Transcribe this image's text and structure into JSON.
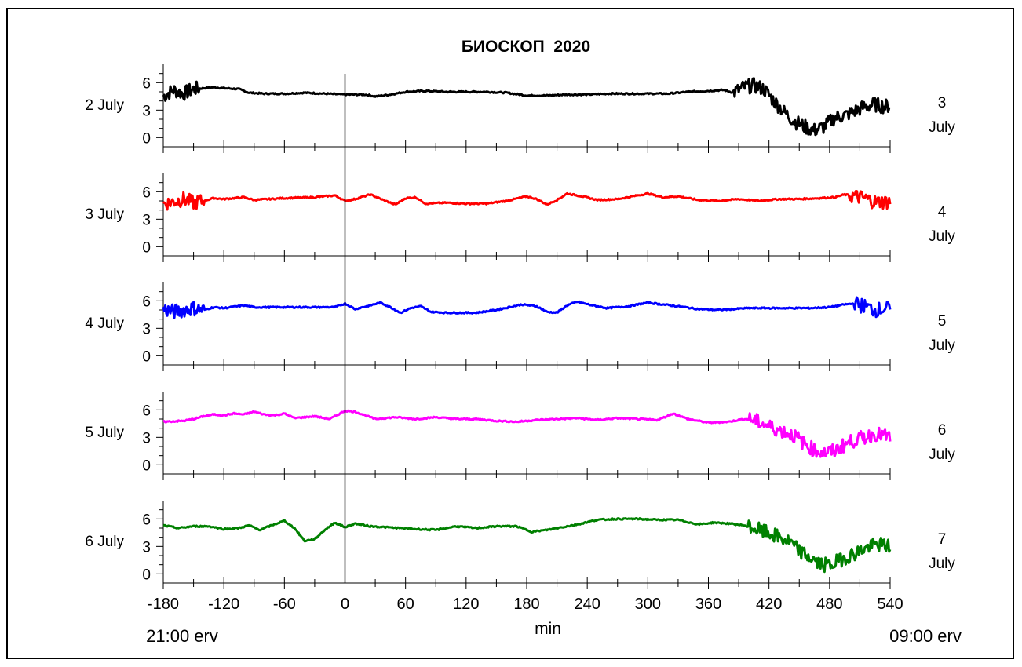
{
  "chart_data": {
    "type": "line",
    "title": "БИОСКОП  2020",
    "xlabel": "min",
    "x_left_note": "21:00 erv",
    "x_right_note": "09:00 erv",
    "xlim": [
      -180,
      540
    ],
    "x_ticks": [
      -180,
      -120,
      -60,
      0,
      60,
      120,
      180,
      240,
      300,
      360,
      420,
      480,
      540
    ],
    "x_tick_labels": [
      "-180",
      "-120",
      "-60",
      "0",
      "60",
      "120",
      "180",
      "240",
      "300",
      "360",
      "420",
      "480",
      "540"
    ],
    "ylim": [
      -1,
      8
    ],
    "y_ticks": [
      0,
      3,
      6
    ],
    "y_tick_labels": [
      "0",
      "3",
      "6"
    ],
    "vline_x": 0,
    "grid": false,
    "legend": "none",
    "panels": [
      {
        "left_label": "2 July",
        "right_num": "3",
        "right_word": "July",
        "color": "#000000",
        "points": [
          [
            -180,
            4.5
          ],
          [
            -170,
            5.2
          ],
          [
            -160,
            4.8
          ],
          [
            -150,
            5.3
          ],
          [
            -140,
            5.4
          ],
          [
            -130,
            5.5
          ],
          [
            -120,
            5.4
          ],
          [
            -105,
            5.3
          ],
          [
            -95,
            4.9
          ],
          [
            -80,
            4.8
          ],
          [
            -60,
            4.8
          ],
          [
            -40,
            4.9
          ],
          [
            -20,
            4.8
          ],
          [
            0,
            4.7
          ],
          [
            20,
            4.7
          ],
          [
            30,
            4.5
          ],
          [
            45,
            4.7
          ],
          [
            60,
            5.0
          ],
          [
            80,
            5.1
          ],
          [
            100,
            5.0
          ],
          [
            120,
            5.0
          ],
          [
            140,
            5.0
          ],
          [
            160,
            4.9
          ],
          [
            180,
            4.6
          ],
          [
            200,
            4.6
          ],
          [
            220,
            4.7
          ],
          [
            240,
            4.7
          ],
          [
            260,
            4.8
          ],
          [
            280,
            4.8
          ],
          [
            300,
            4.8
          ],
          [
            320,
            4.8
          ],
          [
            340,
            5.0
          ],
          [
            360,
            5.1
          ],
          [
            375,
            5.2
          ],
          [
            385,
            4.9
          ],
          [
            395,
            5.5
          ],
          [
            405,
            5.7
          ],
          [
            415,
            5.3
          ],
          [
            425,
            4.0
          ],
          [
            435,
            2.8
          ],
          [
            445,
            1.8
          ],
          [
            455,
            1.2
          ],
          [
            465,
            0.8
          ],
          [
            475,
            1.2
          ],
          [
            485,
            2.2
          ],
          [
            495,
            2.4
          ],
          [
            505,
            2.9
          ],
          [
            515,
            3.4
          ],
          [
            525,
            3.6
          ],
          [
            535,
            3.4
          ],
          [
            540,
            3.5
          ]
        ],
        "noisy_ranges": [
          [
            -180,
            -145
          ],
          [
            385,
            540
          ]
        ]
      },
      {
        "left_label": "3 July",
        "right_num": "4",
        "right_word": "July",
        "color": "#ff0000",
        "points": [
          [
            -180,
            4.7
          ],
          [
            -170,
            4.9
          ],
          [
            -160,
            5.2
          ],
          [
            -150,
            4.8
          ],
          [
            -140,
            5.0
          ],
          [
            -130,
            5.3
          ],
          [
            -120,
            5.2
          ],
          [
            -100,
            5.4
          ],
          [
            -90,
            5.1
          ],
          [
            -60,
            5.3
          ],
          [
            -30,
            5.4
          ],
          [
            -10,
            5.6
          ],
          [
            0,
            5.0
          ],
          [
            10,
            5.2
          ],
          [
            25,
            5.7
          ],
          [
            40,
            5.0
          ],
          [
            50,
            4.6
          ],
          [
            60,
            5.3
          ],
          [
            70,
            5.4
          ],
          [
            80,
            4.7
          ],
          [
            100,
            4.8
          ],
          [
            120,
            4.7
          ],
          [
            140,
            4.7
          ],
          [
            160,
            5.0
          ],
          [
            180,
            5.5
          ],
          [
            190,
            5.2
          ],
          [
            200,
            4.6
          ],
          [
            210,
            5.1
          ],
          [
            220,
            5.8
          ],
          [
            235,
            5.5
          ],
          [
            250,
            5.1
          ],
          [
            270,
            5.2
          ],
          [
            290,
            5.6
          ],
          [
            300,
            5.8
          ],
          [
            315,
            5.4
          ],
          [
            330,
            5.5
          ],
          [
            350,
            5.1
          ],
          [
            370,
            5.0
          ],
          [
            390,
            5.2
          ],
          [
            410,
            5.0
          ],
          [
            430,
            5.2
          ],
          [
            450,
            5.2
          ],
          [
            470,
            5.3
          ],
          [
            485,
            5.4
          ],
          [
            495,
            5.7
          ],
          [
            505,
            5.5
          ],
          [
            515,
            5.3
          ],
          [
            525,
            4.9
          ],
          [
            540,
            4.9
          ]
        ],
        "noisy_ranges": [
          [
            -180,
            -140
          ],
          [
            500,
            540
          ]
        ]
      },
      {
        "left_label": "4 July",
        "right_num": "5",
        "right_word": "July",
        "color": "#0000ff",
        "points": [
          [
            -180,
            5.1
          ],
          [
            -170,
            4.8
          ],
          [
            -160,
            5.0
          ],
          [
            -150,
            5.2
          ],
          [
            -140,
            5.0
          ],
          [
            -130,
            5.3
          ],
          [
            -120,
            5.2
          ],
          [
            -100,
            5.5
          ],
          [
            -90,
            5.3
          ],
          [
            -60,
            5.3
          ],
          [
            -30,
            5.3
          ],
          [
            -10,
            5.3
          ],
          [
            0,
            5.7
          ],
          [
            10,
            5.1
          ],
          [
            25,
            5.5
          ],
          [
            35,
            5.8
          ],
          [
            45,
            5.3
          ],
          [
            55,
            4.7
          ],
          [
            65,
            5.2
          ],
          [
            75,
            5.4
          ],
          [
            85,
            4.8
          ],
          [
            100,
            4.7
          ],
          [
            130,
            4.7
          ],
          [
            150,
            5.0
          ],
          [
            175,
            5.6
          ],
          [
            190,
            5.4
          ],
          [
            200,
            4.8
          ],
          [
            210,
            4.7
          ],
          [
            220,
            5.5
          ],
          [
            230,
            5.9
          ],
          [
            245,
            5.5
          ],
          [
            260,
            5.2
          ],
          [
            280,
            5.4
          ],
          [
            300,
            5.8
          ],
          [
            315,
            5.6
          ],
          [
            330,
            5.4
          ],
          [
            350,
            5.1
          ],
          [
            370,
            5.0
          ],
          [
            400,
            5.2
          ],
          [
            430,
            5.2
          ],
          [
            460,
            5.2
          ],
          [
            480,
            5.3
          ],
          [
            495,
            5.6
          ],
          [
            505,
            5.7
          ],
          [
            515,
            5.4
          ],
          [
            525,
            5.0
          ],
          [
            540,
            5.2
          ]
        ],
        "noisy_ranges": [
          [
            -180,
            -140
          ],
          [
            505,
            540
          ]
        ]
      },
      {
        "left_label": "5 July",
        "right_num": "6",
        "right_word": "July",
        "color": "#ff00ff",
        "points": [
          [
            -180,
            4.7
          ],
          [
            -160,
            4.8
          ],
          [
            -150,
            5.0
          ],
          [
            -140,
            5.3
          ],
          [
            -130,
            5.5
          ],
          [
            -120,
            5.4
          ],
          [
            -110,
            5.6
          ],
          [
            -100,
            5.5
          ],
          [
            -90,
            5.8
          ],
          [
            -80,
            5.5
          ],
          [
            -70,
            5.4
          ],
          [
            -60,
            5.6
          ],
          [
            -50,
            5.1
          ],
          [
            -40,
            5.2
          ],
          [
            -30,
            5.3
          ],
          [
            -15,
            5.0
          ],
          [
            0,
            5.9
          ],
          [
            10,
            5.8
          ],
          [
            30,
            5.0
          ],
          [
            50,
            5.2
          ],
          [
            70,
            5.0
          ],
          [
            90,
            5.2
          ],
          [
            110,
            5.0
          ],
          [
            130,
            5.0
          ],
          [
            150,
            4.8
          ],
          [
            170,
            4.7
          ],
          [
            190,
            4.9
          ],
          [
            210,
            5.0
          ],
          [
            230,
            5.1
          ],
          [
            250,
            4.9
          ],
          [
            270,
            5.1
          ],
          [
            290,
            5.0
          ],
          [
            310,
            4.9
          ],
          [
            325,
            5.6
          ],
          [
            340,
            5.0
          ],
          [
            360,
            4.6
          ],
          [
            380,
            4.7
          ],
          [
            395,
            5.0
          ],
          [
            405,
            4.9
          ],
          [
            420,
            4.2
          ],
          [
            435,
            3.6
          ],
          [
            445,
            3.2
          ],
          [
            455,
            2.3
          ],
          [
            465,
            1.6
          ],
          [
            475,
            1.3
          ],
          [
            485,
            1.5
          ],
          [
            495,
            2.2
          ],
          [
            505,
            2.7
          ],
          [
            515,
            3.0
          ],
          [
            525,
            3.4
          ],
          [
            540,
            3.0
          ]
        ],
        "noisy_ranges": [
          [
            400,
            540
          ]
        ]
      },
      {
        "left_label": "6 July",
        "right_num": "7",
        "right_word": "July",
        "color": "#008000",
        "points": [
          [
            -180,
            5.3
          ],
          [
            -165,
            5.0
          ],
          [
            -150,
            5.2
          ],
          [
            -135,
            5.2
          ],
          [
            -120,
            4.9
          ],
          [
            -105,
            5.0
          ],
          [
            -95,
            5.3
          ],
          [
            -85,
            4.8
          ],
          [
            -75,
            5.2
          ],
          [
            -60,
            5.8
          ],
          [
            -50,
            5.0
          ],
          [
            -40,
            3.6
          ],
          [
            -30,
            3.8
          ],
          [
            -20,
            4.8
          ],
          [
            -10,
            5.6
          ],
          [
            0,
            5.1
          ],
          [
            10,
            5.5
          ],
          [
            25,
            5.2
          ],
          [
            40,
            5.1
          ],
          [
            55,
            5.0
          ],
          [
            70,
            4.9
          ],
          [
            90,
            4.8
          ],
          [
            110,
            5.2
          ],
          [
            130,
            5.0
          ],
          [
            150,
            5.2
          ],
          [
            170,
            5.2
          ],
          [
            185,
            4.6
          ],
          [
            200,
            4.8
          ],
          [
            215,
            5.1
          ],
          [
            230,
            5.4
          ],
          [
            250,
            5.9
          ],
          [
            270,
            6.0
          ],
          [
            290,
            6.0
          ],
          [
            310,
            5.9
          ],
          [
            330,
            5.9
          ],
          [
            350,
            5.4
          ],
          [
            365,
            5.6
          ],
          [
            380,
            5.5
          ],
          [
            395,
            5.3
          ],
          [
            410,
            4.8
          ],
          [
            425,
            4.2
          ],
          [
            440,
            3.5
          ],
          [
            450,
            2.5
          ],
          [
            460,
            1.8
          ],
          [
            470,
            1.1
          ],
          [
            480,
            0.9
          ],
          [
            490,
            1.5
          ],
          [
            500,
            2.0
          ],
          [
            510,
            2.5
          ],
          [
            520,
            3.0
          ],
          [
            530,
            3.2
          ],
          [
            540,
            3.0
          ]
        ],
        "noisy_ranges": [
          [
            400,
            540
          ]
        ]
      }
    ]
  }
}
